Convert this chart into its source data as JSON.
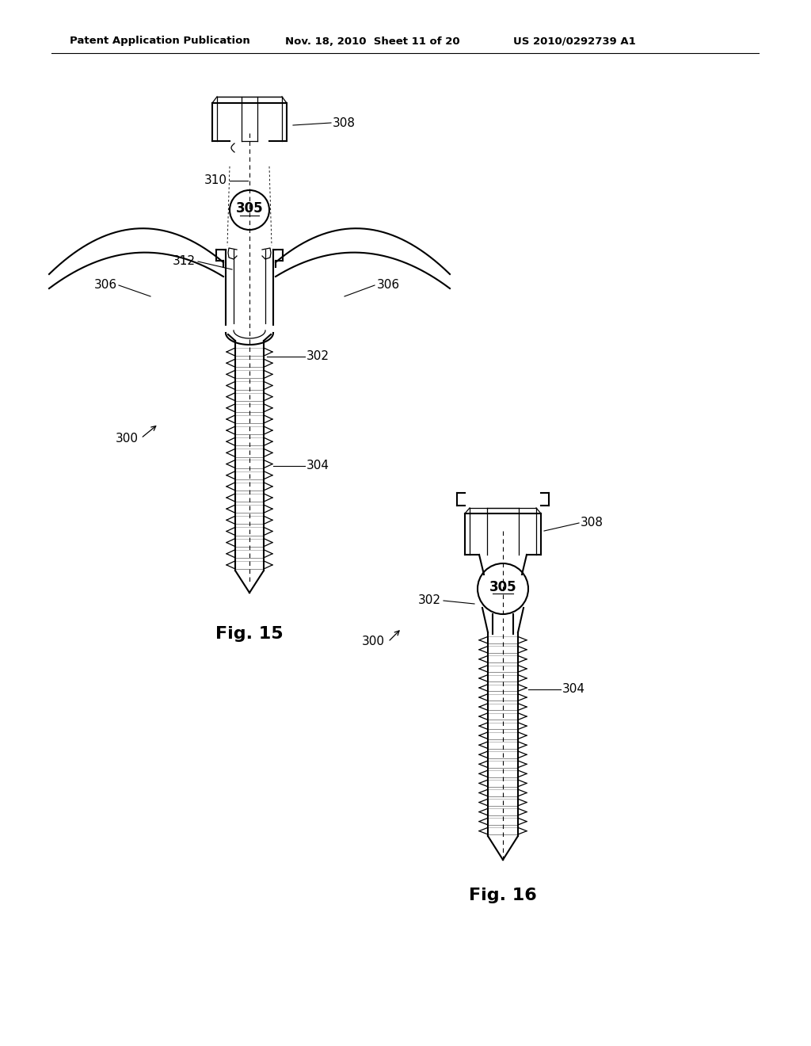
{
  "header_left": "Patent Application Publication",
  "header_mid": "Nov. 18, 2010  Sheet 11 of 20",
  "header_right": "US 2010/0292739 A1",
  "fig15_label": "Fig. 15",
  "fig16_label": "Fig. 16",
  "bg_color": "#ffffff",
  "line_color": "#000000",
  "lw": 1.5,
  "tlw": 0.9
}
